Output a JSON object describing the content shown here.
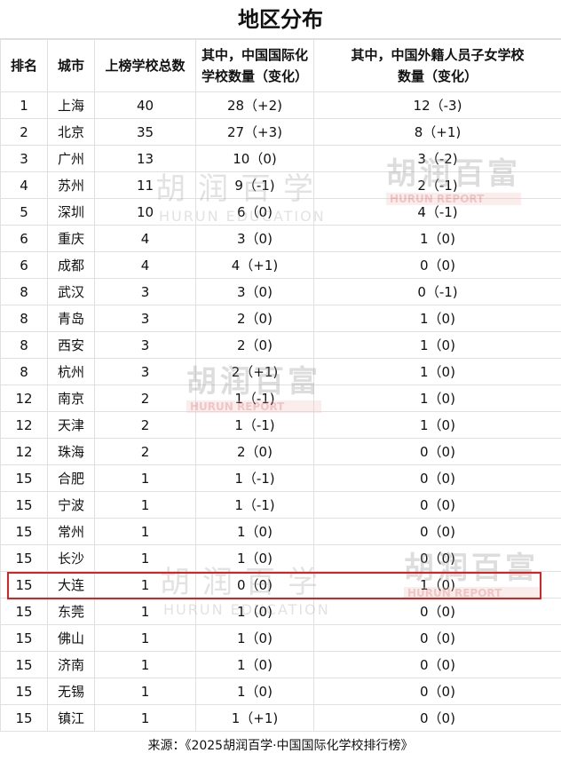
{
  "title": "地区分布",
  "headers": [
    "排名",
    "城市",
    "上榜学校总数",
    "其中，中国国际化学校数量（变化）",
    "其中，中国外籍人员子女学校数量（变化）"
  ],
  "rows": [
    [
      "1",
      "上海",
      "40",
      "28（+2)",
      "12（-3)"
    ],
    [
      "2",
      "北京",
      "35",
      "27（+3)",
      "8（+1)"
    ],
    [
      "3",
      "广州",
      "13",
      "10（0)",
      "3（-2)"
    ],
    [
      "4",
      "苏州",
      "11",
      "9（-1)",
      "2（-1)"
    ],
    [
      "5",
      "深圳",
      "10",
      "6（0)",
      "4（-1)"
    ],
    [
      "6",
      "重庆",
      "4",
      "3（0)",
      "1（0)"
    ],
    [
      "6",
      "成都",
      "4",
      "4（+1)",
      "0（0)"
    ],
    [
      "8",
      "武汉",
      "3",
      "3（0)",
      "0（-1)"
    ],
    [
      "8",
      "青岛",
      "3",
      "2（0)",
      "1（0)"
    ],
    [
      "8",
      "西安",
      "3",
      "2（0)",
      "1（0)"
    ],
    [
      "8",
      "杭州",
      "3",
      "2（+1)",
      "1（0)"
    ],
    [
      "12",
      "南京",
      "2",
      "1（-1)",
      "1（0)"
    ],
    [
      "12",
      "天津",
      "2",
      "1（-1)",
      "1（0)"
    ],
    [
      "12",
      "珠海",
      "2",
      "2（0)",
      "0（0)"
    ],
    [
      "15",
      "合肥",
      "1",
      "1（-1)",
      "0（0)"
    ],
    [
      "15",
      "宁波",
      "1",
      "1（-1)",
      "0（0)"
    ],
    [
      "15",
      "常州",
      "1",
      "1（0)",
      "0（0)"
    ],
    [
      "15",
      "长沙",
      "1",
      "1（0)",
      "0（0)"
    ],
    [
      "15",
      "大连",
      "1",
      "0（0)",
      "1（0)"
    ],
    [
      "15",
      "东莞",
      "1",
      "1（0)",
      "0（0)"
    ],
    [
      "15",
      "佛山",
      "1",
      "1（0)",
      "0（0)"
    ],
    [
      "15",
      "济南",
      "1",
      "1（0)",
      "0（0)"
    ],
    [
      "15",
      "无锡",
      "1",
      "1（0)",
      "0（0)"
    ],
    [
      "15",
      "镇江",
      "1",
      "1（+1)",
      "0（0)"
    ]
  ],
  "highlighted_row": "大连",
  "highlight_color": "#e02020",
  "footer": "来源：《2025胡润百学·中国国际化学校排行榜》",
  "watermarks": {
    "education_cn": "胡润百学",
    "education_en": "HURUN EDUCATION",
    "report_cn": "胡润百富",
    "report_en": "HURUN REPORT",
    "report_since": "Since 1999"
  }
}
